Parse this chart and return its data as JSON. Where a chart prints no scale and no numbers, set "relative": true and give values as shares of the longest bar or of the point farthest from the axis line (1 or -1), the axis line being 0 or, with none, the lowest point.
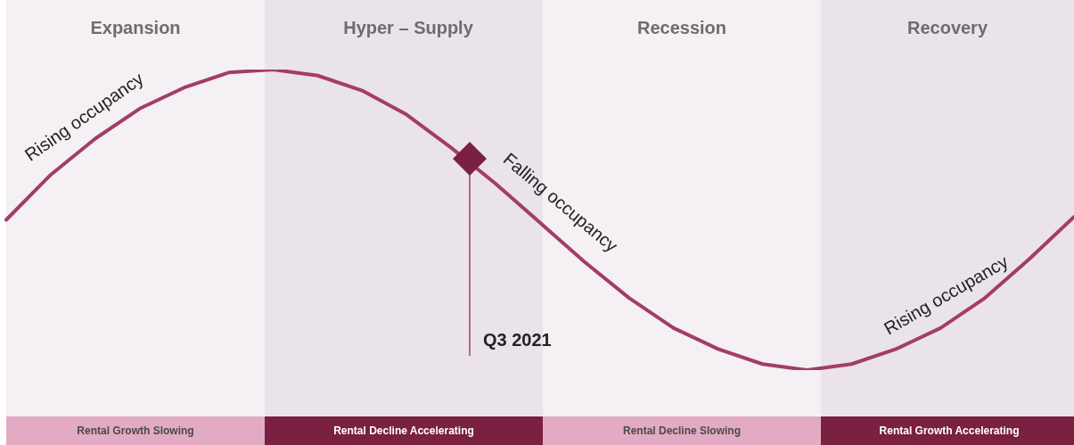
{
  "chart_data": {
    "type": "line",
    "relative": true,
    "categories": [
      null,
      null,
      null,
      null,
      null,
      null,
      null,
      null,
      null,
      null,
      null,
      null,
      null,
      null,
      null,
      null,
      null,
      null,
      null,
      null,
      null,
      null,
      null,
      null,
      null
    ],
    "series": [
      {
        "color": "#a33d66",
        "values": [
          0.5,
          0.65,
          0.77,
          0.87,
          0.94,
          0.99,
          1.0,
          0.98,
          0.93,
          0.85,
          0.74,
          0.62,
          0.49,
          0.36,
          0.24,
          0.14,
          0.07,
          0.02,
          0.0,
          0.02,
          0.07,
          0.14,
          0.24,
          0.37,
          0.51
        ]
      }
    ],
    "annotations": [
      "Expansion",
      "Hyper – Supply",
      "Recession",
      "Recovery",
      "Rental Growth Slowing",
      "Rental Decline Accelerating",
      "Rental Decline Slowing",
      "Rental Growth Accelerating",
      "Rising occupancy",
      "Falling occupancy",
      "Rising occupancy",
      "Q3 2021"
    ]
  }
}
